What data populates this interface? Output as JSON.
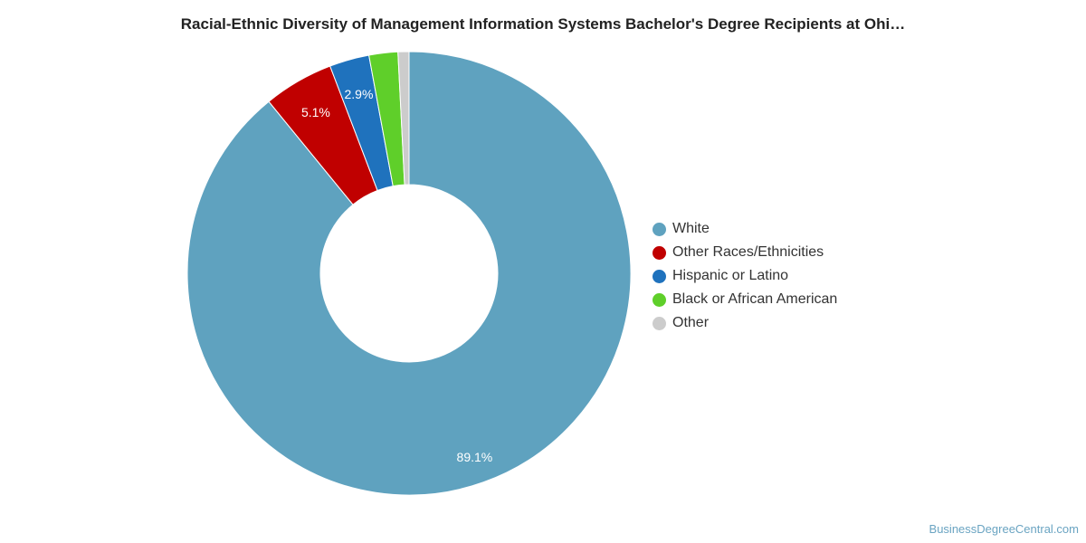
{
  "chart_data": {
    "type": "pie",
    "title": "Racial-Ethnic Diversity of Management Information Systems Bachelor's Degree Recipients at Ohi…",
    "donut": true,
    "legend_position": "right",
    "slices": [
      {
        "name": "White",
        "value": 89.1,
        "label": "89.1%",
        "color": "#5fa2bf"
      },
      {
        "name": "Other Races/Ethnicities",
        "value": 5.1,
        "label": "5.1%",
        "color": "#c00000"
      },
      {
        "name": "Hispanic or Latino",
        "value": 2.9,
        "label": "2.9%",
        "color": "#1f72bd"
      },
      {
        "name": "Black or African American",
        "value": 2.1,
        "label": "",
        "color": "#5fcf2a"
      },
      {
        "name": "Other",
        "value": 0.8,
        "label": "",
        "color": "#cccccc"
      }
    ]
  },
  "credit": "BusinessDegreeCentral.com"
}
